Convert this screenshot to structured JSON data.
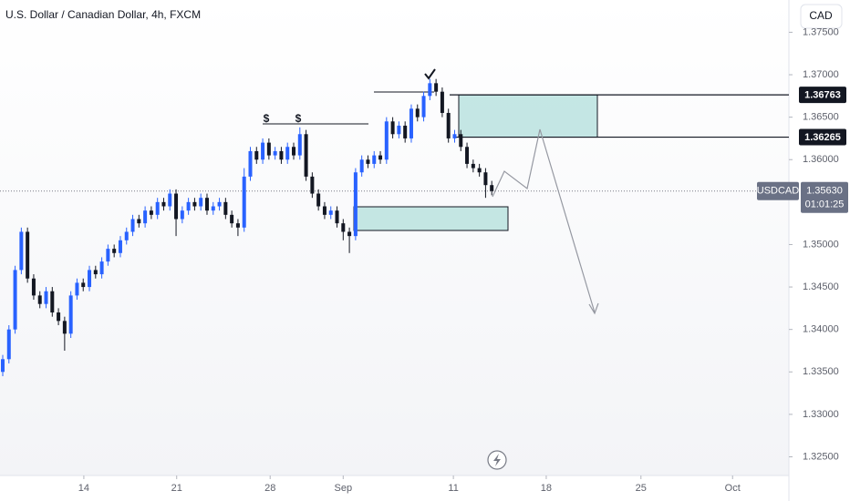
{
  "title": "U.S. Dollar / Canadian Dollar, 4h, FXCM",
  "currency_button": "CAD",
  "chart_data": {
    "type": "candlestick",
    "up_color": "#2962ff",
    "down_color": "#131722",
    "xlim": [
      0,
      127
    ],
    "xticks": [
      {
        "value": 13.1,
        "label": "14"
      },
      {
        "value": 28.1,
        "label": "21"
      },
      {
        "value": 43.2,
        "label": "28"
      },
      {
        "value": 55,
        "label": "Sep"
      },
      {
        "value": 72.8,
        "label": "11"
      },
      {
        "value": 87.8,
        "label": "18"
      },
      {
        "value": 103.1,
        "label": "25"
      },
      {
        "value": 117.9,
        "label": "Oct"
      }
    ],
    "ylim": [
      1.3228,
      1.3788
    ],
    "yticks": [
      {
        "value": 1.375,
        "label": "1.37500"
      },
      {
        "value": 1.37,
        "label": "1.37000"
      },
      {
        "value": 1.365,
        "label": "1.36500"
      },
      {
        "value": 1.36,
        "label": "1.36000"
      },
      {
        "value": 1.35,
        "label": "1.35000"
      },
      {
        "value": 1.345,
        "label": "1.34500"
      },
      {
        "value": 1.34,
        "label": "1.34000"
      },
      {
        "value": 1.335,
        "label": "1.33500"
      },
      {
        "value": 1.33,
        "label": "1.33000"
      },
      {
        "value": 1.325,
        "label": "1.32500"
      }
    ],
    "open": [
      1.335,
      1.3365,
      1.34,
      1.347,
      1.3515,
      1.346,
      1.344,
      1.343,
      1.3445,
      1.342,
      1.341,
      1.3395,
      1.344,
      1.3455,
      1.345,
      1.347,
      1.3465,
      1.348,
      1.3495,
      1.349,
      1.3505,
      1.3515,
      1.353,
      1.3525,
      1.354,
      1.3535,
      1.355,
      1.3545,
      1.356,
      1.353,
      1.354,
      1.355,
      1.3545,
      1.3555,
      1.354,
      1.3545,
      1.355,
      1.3535,
      1.3525,
      1.352,
      1.358,
      1.361,
      1.36,
      1.362,
      1.3605,
      1.361,
      1.36,
      1.3615,
      1.3605,
      1.363,
      1.358,
      1.356,
      1.3545,
      1.3535,
      1.354,
      1.3525,
      1.3515,
      1.351,
      1.3585,
      1.36,
      1.3595,
      1.3605,
      1.36,
      1.3645,
      1.363,
      1.364,
      1.3625,
      1.366,
      1.365,
      1.3675,
      1.369,
      1.368,
      1.3655,
      1.3625,
      1.363,
      1.3615,
      1.3595,
      1.359,
      1.3585,
      1.357
    ],
    "high": [
      1.337,
      1.3405,
      1.3475,
      1.352,
      1.352,
      1.3465,
      1.3445,
      1.345,
      1.345,
      1.3425,
      1.3415,
      1.3445,
      1.346,
      1.346,
      1.3475,
      1.3475,
      1.3485,
      1.35,
      1.35,
      1.351,
      1.352,
      1.3535,
      1.3535,
      1.3545,
      1.3545,
      1.3555,
      1.3555,
      1.3565,
      1.3565,
      1.3545,
      1.3555,
      1.3555,
      1.356,
      1.356,
      1.355,
      1.3555,
      1.3555,
      1.354,
      1.353,
      1.359,
      1.3615,
      1.3615,
      1.3625,
      1.3625,
      1.3615,
      1.3615,
      1.362,
      1.362,
      1.3638,
      1.3635,
      1.3585,
      1.3565,
      1.355,
      1.3545,
      1.3545,
      1.353,
      1.352,
      1.359,
      1.3605,
      1.3605,
      1.361,
      1.361,
      1.365,
      1.365,
      1.3645,
      1.3645,
      1.3665,
      1.3665,
      1.368,
      1.3695,
      1.3695,
      1.3685,
      1.366,
      1.3635,
      1.3635,
      1.362,
      1.36,
      1.3595,
      1.359,
      1.3575
    ],
    "low": [
      1.3345,
      1.336,
      1.3395,
      1.3465,
      1.3455,
      1.3435,
      1.3425,
      1.3425,
      1.3415,
      1.3405,
      1.3375,
      1.339,
      1.3435,
      1.3445,
      1.3445,
      1.346,
      1.346,
      1.3475,
      1.3485,
      1.3485,
      1.35,
      1.351,
      1.352,
      1.352,
      1.353,
      1.353,
      1.354,
      1.354,
      1.351,
      1.3525,
      1.3535,
      1.354,
      1.354,
      1.3535,
      1.3535,
      1.354,
      1.353,
      1.352,
      1.351,
      1.3515,
      1.3575,
      1.3595,
      1.3595,
      1.36,
      1.36,
      1.3595,
      1.3595,
      1.36,
      1.36,
      1.3575,
      1.3555,
      1.354,
      1.353,
      1.353,
      1.352,
      1.3505,
      1.349,
      1.3505,
      1.358,
      1.359,
      1.359,
      1.3595,
      1.3595,
      1.3625,
      1.3625,
      1.362,
      1.362,
      1.3645,
      1.3645,
      1.367,
      1.3675,
      1.365,
      1.362,
      1.362,
      1.361,
      1.359,
      1.3585,
      1.358,
      1.3555,
      1.3558
    ],
    "close": [
      1.3365,
      1.34,
      1.347,
      1.3515,
      1.346,
      1.344,
      1.343,
      1.3445,
      1.342,
      1.341,
      1.3395,
      1.344,
      1.3455,
      1.345,
      1.347,
      1.3465,
      1.348,
      1.3495,
      1.349,
      1.3505,
      1.3515,
      1.353,
      1.3525,
      1.354,
      1.3535,
      1.355,
      1.3545,
      1.356,
      1.353,
      1.354,
      1.355,
      1.3545,
      1.3555,
      1.354,
      1.3545,
      1.355,
      1.3535,
      1.3525,
      1.352,
      1.358,
      1.361,
      1.36,
      1.362,
      1.3605,
      1.361,
      1.36,
      1.3615,
      1.3605,
      1.363,
      1.358,
      1.356,
      1.3545,
      1.3535,
      1.354,
      1.3525,
      1.3515,
      1.351,
      1.3585,
      1.36,
      1.3595,
      1.3605,
      1.36,
      1.3645,
      1.363,
      1.364,
      1.3625,
      1.366,
      1.365,
      1.3675,
      1.369,
      1.368,
      1.3655,
      1.3625,
      1.363,
      1.3615,
      1.3595,
      1.359,
      1.3585,
      1.357,
      1.3563
    ],
    "levels": [
      {
        "value": 1.36763,
        "label": "1.36763"
      },
      {
        "value": 1.36265,
        "label": "1.36265"
      }
    ],
    "last_price": {
      "value": 1.3563,
      "label": "1.35630"
    },
    "symbol": "USDCAD",
    "countdown": "01:01:25",
    "annotations": [
      "$",
      "$"
    ]
  }
}
